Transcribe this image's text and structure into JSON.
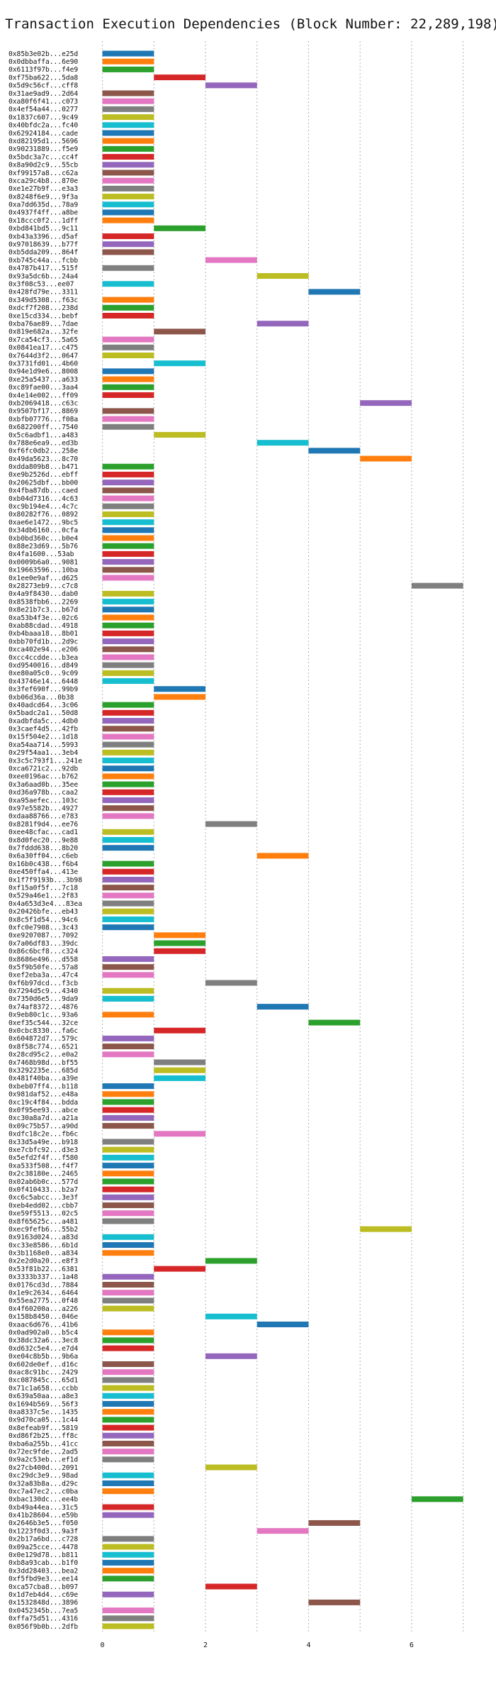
{
  "chart_data": {
    "type": "bar",
    "orientation": "horizontal-gantt",
    "title": "Transaction Execution Dependencies (Block Number: 22,289,198)",
    "xlabel": "",
    "ylabel": "",
    "xlim": [
      -0.2,
      7.5
    ],
    "xticks": [
      0,
      2,
      4,
      6
    ],
    "grid": "vertical-dotted",
    "palette": [
      "#1f77b4",
      "#ff7f0e",
      "#2ca02c",
      "#d62728",
      "#9467bd",
      "#8c564b",
      "#e377c2",
      "#7f7f7f",
      "#bcbd22",
      "#17becf"
    ],
    "transactions": [
      {
        "hash": "0x85b3e02b...e25d",
        "start": 0
      },
      {
        "hash": "0x0dbbaffa...6e90",
        "start": 0
      },
      {
        "hash": "0x6113f97b...f4e9",
        "start": 0
      },
      {
        "hash": "0xf75ba622...5da8",
        "start": 1
      },
      {
        "hash": "0x5d9c56cf...cff8",
        "start": 2
      },
      {
        "hash": "0x31ae9ad9...2d64",
        "start": 0
      },
      {
        "hash": "0xa80f6f41...c073",
        "start": 0
      },
      {
        "hash": "0x4ef54a44...0277",
        "start": 0
      },
      {
        "hash": "0x1837c607...9c49",
        "start": 0
      },
      {
        "hash": "0x40bfdc2a...fc40",
        "start": 0
      },
      {
        "hash": "0x62924184...cade",
        "start": 0
      },
      {
        "hash": "0xd82195d1...5696",
        "start": 0
      },
      {
        "hash": "0x90231889...f5e9",
        "start": 0
      },
      {
        "hash": "0x5bdc3a7c...cc4f",
        "start": 0
      },
      {
        "hash": "0x8a90d2c9...55cb",
        "start": 0
      },
      {
        "hash": "0xf99157a8...c62a",
        "start": 0
      },
      {
        "hash": "0xca29c4b8...870e",
        "start": 0
      },
      {
        "hash": "0xe1e27b9f...e3a3",
        "start": 0
      },
      {
        "hash": "0x8248f6e9...9f3a",
        "start": 0
      },
      {
        "hash": "0xa7dd635d...78a9",
        "start": 0
      },
      {
        "hash": "0x4937f4ff...a8be",
        "start": 0
      },
      {
        "hash": "0x18ccc0f2...1dff",
        "start": 0
      },
      {
        "hash": "0xbd841bd5...9c11",
        "start": 1
      },
      {
        "hash": "0xb43a3396...d5af",
        "start": 0
      },
      {
        "hash": "0x97018639...b77f",
        "start": 0
      },
      {
        "hash": "0xb5dda209...864f",
        "start": 0
      },
      {
        "hash": "0xb745c44a...fcbb",
        "start": 2
      },
      {
        "hash": "0x4787b417...515f",
        "start": 0
      },
      {
        "hash": "0x93a5dc6b...24a4",
        "start": 3
      },
      {
        "hash": "0x3f08c53...ee07",
        "start": 0
      },
      {
        "hash": "0x428fd79e...3311",
        "start": 4
      },
      {
        "hash": "0x349d5308...f63c",
        "start": 0
      },
      {
        "hash": "0xdcf7f208...238d",
        "start": 0
      },
      {
        "hash": "0xe15cd334...bebf",
        "start": 0
      },
      {
        "hash": "0xba76ae89...7dae",
        "start": 3
      },
      {
        "hash": "0x819e682a...32fe",
        "start": 1
      },
      {
        "hash": "0x7ca54cf3...5a65",
        "start": 0
      },
      {
        "hash": "0x0841ea17...c475",
        "start": 0
      },
      {
        "hash": "0x7644d3f2...0647",
        "start": 0
      },
      {
        "hash": "0x3731fd01...4b60",
        "start": 1
      },
      {
        "hash": "0x94e1d9e6...8008",
        "start": 0
      },
      {
        "hash": "0xe25a5437...a633",
        "start": 0
      },
      {
        "hash": "0xc89fae00...3aa4",
        "start": 0
      },
      {
        "hash": "0x4e14e002...ff09",
        "start": 0
      },
      {
        "hash": "0xb2069418...c63c",
        "start": 5
      },
      {
        "hash": "0x9507bf17...8869",
        "start": 0
      },
      {
        "hash": "0xbfb07776...f08a",
        "start": 0
      },
      {
        "hash": "0x682200ff...7540",
        "start": 0
      },
      {
        "hash": "0x5c6adbf1...a483",
        "start": 1
      },
      {
        "hash": "0x788e6ea9...ed3b",
        "start": 3
      },
      {
        "hash": "0xf6fc0db2...258e",
        "start": 4
      },
      {
        "hash": "0x49da5623...8c70",
        "start": 5
      },
      {
        "hash": "0xdda809b8...b471",
        "start": 0
      },
      {
        "hash": "0xe9b2526d...ebff",
        "start": 0
      },
      {
        "hash": "0x20625dbf...bb00",
        "start": 0
      },
      {
        "hash": "0x4fba87db...caed",
        "start": 0
      },
      {
        "hash": "0xb04d7316...4c63",
        "start": 0
      },
      {
        "hash": "0xc9b194e4...4c7c",
        "start": 0
      },
      {
        "hash": "0x80282f76...0892",
        "start": 0
      },
      {
        "hash": "0xae6e1472...9bc5",
        "start": 0
      },
      {
        "hash": "0x34db6160...0cfa",
        "start": 0
      },
      {
        "hash": "0xb0bd360c...b0e4",
        "start": 0
      },
      {
        "hash": "0x88e23d69...5b76",
        "start": 0
      },
      {
        "hash": "0x4fa1600...53ab",
        "start": 0
      },
      {
        "hash": "0x0009b6a0...9081",
        "start": 0
      },
      {
        "hash": "0x19663596...10ba",
        "start": 0
      },
      {
        "hash": "0x1ee0e9af...d625",
        "start": 0
      },
      {
        "hash": "0x28273eb9...c7c8",
        "start": 6
      },
      {
        "hash": "0x4a9f8430...dab0",
        "start": 0
      },
      {
        "hash": "0x8538fbb6...2269",
        "start": 0
      },
      {
        "hash": "0x8e21b7c3...b67d",
        "start": 0
      },
      {
        "hash": "0xa53b4f3e...02c6",
        "start": 0
      },
      {
        "hash": "0xab88cdad...4918",
        "start": 0
      },
      {
        "hash": "0xb4baaa18...8b01",
        "start": 0
      },
      {
        "hash": "0xbb70fd1b...2d9c",
        "start": 0
      },
      {
        "hash": "0xca402e94...e206",
        "start": 0
      },
      {
        "hash": "0xcc4ccdde...b3ea",
        "start": 0
      },
      {
        "hash": "0xd9540016...d849",
        "start": 0
      },
      {
        "hash": "0xe80a05c0...9c09",
        "start": 0
      },
      {
        "hash": "0x43746e14...6448",
        "start": 0
      },
      {
        "hash": "0x3fef690f...99b9",
        "start": 1
      },
      {
        "hash": "0xb06d36a...0b38",
        "start": 1
      },
      {
        "hash": "0x40adcd64...3c06",
        "start": 0
      },
      {
        "hash": "0x5badc2a1...50d8",
        "start": 0
      },
      {
        "hash": "0xadbfda5c...4db0",
        "start": 0
      },
      {
        "hash": "0x3caef4d5...42fb",
        "start": 0
      },
      {
        "hash": "0x15f504e2...1d18",
        "start": 0
      },
      {
        "hash": "0xa54aa714...5993",
        "start": 0
      },
      {
        "hash": "0x29f54aa1...3eb4",
        "start": 0
      },
      {
        "hash": "0x3c5c793f1...241e",
        "start": 0
      },
      {
        "hash": "0xca6721c2...92db",
        "start": 0
      },
      {
        "hash": "0xee0196ac...b762",
        "start": 0
      },
      {
        "hash": "0x3a6aad0b...35ee",
        "start": 0
      },
      {
        "hash": "0xd36a978b...caa2",
        "start": 0
      },
      {
        "hash": "0xa95aefec...103c",
        "start": 0
      },
      {
        "hash": "0x97e5582b...4927",
        "start": 0
      },
      {
        "hash": "0xdaa88766...e783",
        "start": 0
      },
      {
        "hash": "0x8281f9d4...ee76",
        "start": 2
      },
      {
        "hash": "0xee48cfac...cad1",
        "start": 0
      },
      {
        "hash": "0x8d0fec20...9e88",
        "start": 0
      },
      {
        "hash": "0x7fddd638...8b20",
        "start": 0
      },
      {
        "hash": "0x6a30ff04...c6eb",
        "start": 3
      },
      {
        "hash": "0x16b0c438...f6b4",
        "start": 0
      },
      {
        "hash": "0xe450ffa4...413e",
        "start": 0
      },
      {
        "hash": "0x1f7f9193b...3b98",
        "start": 0
      },
      {
        "hash": "0xf15a0f5f...7c18",
        "start": 0
      },
      {
        "hash": "0x529a46e1...2f83",
        "start": 0
      },
      {
        "hash": "0x4a653d3e4...83ea",
        "start": 0
      },
      {
        "hash": "0x20426bfe...eb43",
        "start": 0
      },
      {
        "hash": "0x8c5f1d54...94c6",
        "start": 0
      },
      {
        "hash": "0xfc0e7908...3c43",
        "start": 0
      },
      {
        "hash": "0xe9207087...7092",
        "start": 1
      },
      {
        "hash": "0x7a06df83...39dc",
        "start": 1
      },
      {
        "hash": "0x86c6bcf8...c324",
        "start": 1
      },
      {
        "hash": "0x8686e496...d558",
        "start": 0
      },
      {
        "hash": "0x5f9b50fe...57a8",
        "start": 0
      },
      {
        "hash": "0xef2eba3a...47c4",
        "start": 0
      },
      {
        "hash": "0xf6b97dcd...f3cb",
        "start": 2
      },
      {
        "hash": "0x7294d5c9...4340",
        "start": 0
      },
      {
        "hash": "0x7350d6e5...9da9",
        "start": 0
      },
      {
        "hash": "0x74af8372...4876",
        "start": 3
      },
      {
        "hash": "0x9eb80c1c...93a6",
        "start": 0
      },
      {
        "hash": "0xef35c544...32ce",
        "start": 4
      },
      {
        "hash": "0x0cbc8330...fa6c",
        "start": 1
      },
      {
        "hash": "0x604872d7...579c",
        "start": 0
      },
      {
        "hash": "0x8f58c774...6521",
        "start": 0
      },
      {
        "hash": "0x28cd95c2...e0a2",
        "start": 0
      },
      {
        "hash": "0x7468b98d...bf55",
        "start": 1
      },
      {
        "hash": "0x3292235e...685d",
        "start": 1
      },
      {
        "hash": "0x481f40ba...a39e",
        "start": 1
      },
      {
        "hash": "0xbeb07ff4...b118",
        "start": 0
      },
      {
        "hash": "0x981daf52...e48a",
        "start": 0
      },
      {
        "hash": "0xc19c4f84...bdda",
        "start": 0
      },
      {
        "hash": "0x0f95ee93...abce",
        "start": 0
      },
      {
        "hash": "0xc30a8a7d...a21a",
        "start": 0
      },
      {
        "hash": "0x09c75b57...a90d",
        "start": 0
      },
      {
        "hash": "0xdfc18c2e...fb6c",
        "start": 1
      },
      {
        "hash": "0x33d5a49e...b918",
        "start": 0
      },
      {
        "hash": "0xe7cbfc92...d3e3",
        "start": 0
      },
      {
        "hash": "0x5efd2f4f...f580",
        "start": 0
      },
      {
        "hash": "0xa533f508...f4f7",
        "start": 0
      },
      {
        "hash": "0x2c38180e...2465",
        "start": 0
      },
      {
        "hash": "0x02ab6b0c...577d",
        "start": 0
      },
      {
        "hash": "0x0f410433...b2a7",
        "start": 0
      },
      {
        "hash": "0xc6c5abcc...3e3f",
        "start": 0
      },
      {
        "hash": "0xeb4edd02...cbb7",
        "start": 0
      },
      {
        "hash": "0xe59f5513...02c5",
        "start": 0
      },
      {
        "hash": "0x8f65625c...a481",
        "start": 0
      },
      {
        "hash": "0xec9fefb6...55b2",
        "start": 5
      },
      {
        "hash": "0x9163d024...a83d",
        "start": 0
      },
      {
        "hash": "0xc33e8586...6b1d",
        "start": 0
      },
      {
        "hash": "0x3b1168e0...a834",
        "start": 0
      },
      {
        "hash": "0x2e2d0a20...e8f3",
        "start": 2
      },
      {
        "hash": "0x53f81b22...6381",
        "start": 1
      },
      {
        "hash": "0x3333b337...1a48",
        "start": 0
      },
      {
        "hash": "0x0176cd3d...7884",
        "start": 0
      },
      {
        "hash": "0x1e9c2634...6464",
        "start": 0
      },
      {
        "hash": "0x55ea2775...0f48",
        "start": 0
      },
      {
        "hash": "0x4f60200a...a226",
        "start": 0
      },
      {
        "hash": "0x158b8450...046e",
        "start": 2
      },
      {
        "hash": "0xaac6d676...41b6",
        "start": 3
      },
      {
        "hash": "0x0ad902a0...b5c4",
        "start": 0
      },
      {
        "hash": "0x38dc32a6...3ec8",
        "start": 0
      },
      {
        "hash": "0xd632c5e4...e7d4",
        "start": 0
      },
      {
        "hash": "0xe04c8b5b...9b6a",
        "start": 2
      },
      {
        "hash": "0x602de0ef...d16c",
        "start": 0
      },
      {
        "hash": "0xac8c91bc...2429",
        "start": 0
      },
      {
        "hash": "0xc087845c...65d1",
        "start": 0
      },
      {
        "hash": "0x71c1a658...ccbb",
        "start": 0
      },
      {
        "hash": "0x639a50aa...a8e3",
        "start": 0
      },
      {
        "hash": "0x1694b569...56f3",
        "start": 0
      },
      {
        "hash": "0xa8337c5e...1435",
        "start": 0
      },
      {
        "hash": "0x9d70ca05...1c44",
        "start": 0
      },
      {
        "hash": "0x8efeab9f...5819",
        "start": 0
      },
      {
        "hash": "0xd86f2b25...ff8c",
        "start": 0
      },
      {
        "hash": "0xba6a255b...41cc",
        "start": 0
      },
      {
        "hash": "0x72ec9fde...2ad5",
        "start": 0
      },
      {
        "hash": "0x9a2c53eb...ef1d",
        "start": 0
      },
      {
        "hash": "0x27cb400d...2091",
        "start": 2
      },
      {
        "hash": "0xc29dc3e9...98ad",
        "start": 0
      },
      {
        "hash": "0x32a83b8a...d29c",
        "start": 0
      },
      {
        "hash": "0xc7a47ec2...c0ba",
        "start": 0
      },
      {
        "hash": "0xbac130dc...ee4b",
        "start": 6
      },
      {
        "hash": "0xb49a44ea...31c5",
        "start": 0
      },
      {
        "hash": "0x41b28604...e59b",
        "start": 0
      },
      {
        "hash": "0x2646b3e5...f050",
        "start": 4
      },
      {
        "hash": "0x1223f0d3...9a3f",
        "start": 3
      },
      {
        "hash": "0x2b17a6bd...c728",
        "start": 0
      },
      {
        "hash": "0x09a25cce...4478",
        "start": 0
      },
      {
        "hash": "0x0e129d78...b811",
        "start": 0
      },
      {
        "hash": "0xb8a93cab...b1f0",
        "start": 0
      },
      {
        "hash": "0x3dd28403...bea2",
        "start": 0
      },
      {
        "hash": "0xf5fbd9e3...ee14",
        "start": 0
      },
      {
        "hash": "0xca57cba8...b097",
        "start": 2
      },
      {
        "hash": "0x1d7eb4d4...c69e",
        "start": 0
      },
      {
        "hash": "0x1532848d...3896",
        "start": 4
      },
      {
        "hash": "0x0452345b...7ea5",
        "start": 0
      },
      {
        "hash": "0xffa75d51...4316",
        "start": 0
      },
      {
        "hash": "0x056f9b0b...2dfb",
        "start": 0
      }
    ]
  }
}
